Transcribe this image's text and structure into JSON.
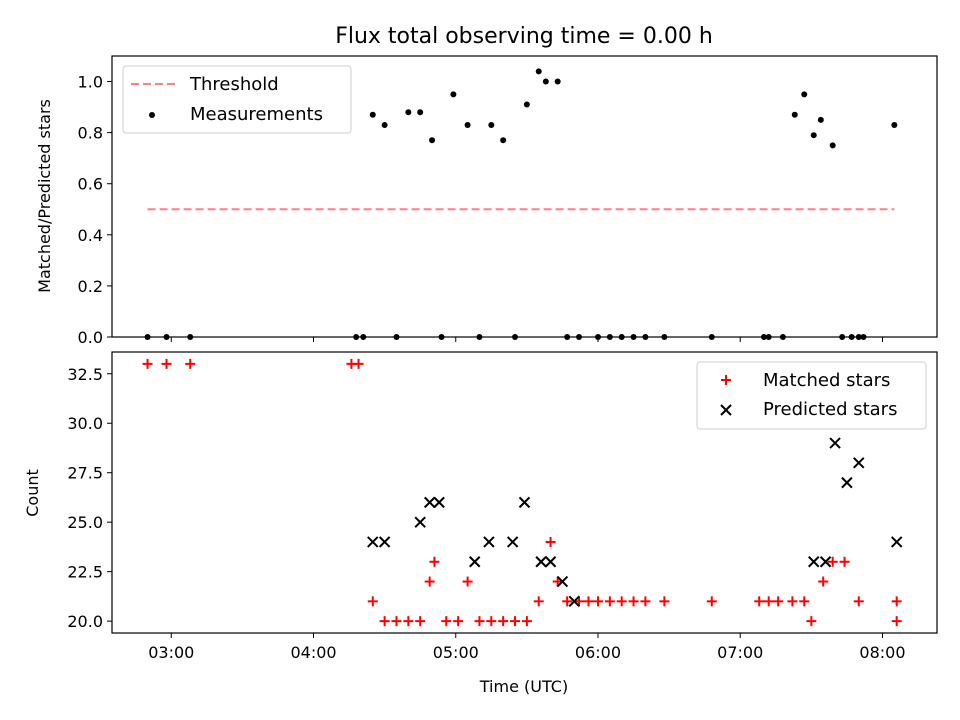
{
  "chart_data": [
    {
      "type": "scatter",
      "title": "Flux total observing time = 0.00 h",
      "xlabel": "",
      "ylabel": "Matched/Predicted stars",
      "xlim": [
        "02:35",
        "08:23"
      ],
      "ylim": [
        0.0,
        1.1
      ],
      "yticks": [
        "0.0",
        "0.2",
        "0.4",
        "0.6",
        "0.8",
        "1.0"
      ],
      "ytick_values": [
        0.0,
        0.2,
        0.4,
        0.6,
        0.8,
        1.0
      ],
      "legend_position": "top-left",
      "threshold": {
        "name": "Threshold",
        "color": "#ff8080",
        "value": 0.5,
        "x_start": "02:50",
        "x_end": "08:05"
      },
      "series": [
        {
          "name": "Measurements",
          "color": "#000000",
          "marker": "dot",
          "x": [
            "02:50",
            "02:58",
            "03:08",
            "04:18",
            "04:21",
            "04:25",
            "04:30",
            "04:35",
            "04:40",
            "04:45",
            "04:50",
            "04:54",
            "04:59",
            "05:05",
            "05:10",
            "05:15",
            "05:20",
            "05:25",
            "05:30",
            "05:35",
            "05:38",
            "05:43",
            "05:47",
            "05:52",
            "06:00",
            "06:05",
            "06:10",
            "06:15",
            "06:20",
            "06:28",
            "06:48",
            "07:10",
            "07:12",
            "07:18",
            "07:23",
            "07:27",
            "07:31",
            "07:34",
            "07:39",
            "07:43",
            "07:47",
            "07:50",
            "07:52",
            "08:05"
          ],
          "y": [
            0,
            0,
            0,
            0,
            0,
            0.87,
            0.83,
            0,
            0.88,
            0.88,
            0.77,
            0,
            0.95,
            0.83,
            0,
            0.83,
            0.77,
            0,
            0.91,
            1.04,
            1.0,
            1.0,
            0,
            0,
            0,
            0,
            0,
            0,
            0,
            0,
            0,
            0,
            0,
            0,
            0.87,
            0.95,
            0.79,
            0.85,
            0.75,
            0,
            0,
            0,
            0,
            0.83
          ]
        }
      ]
    },
    {
      "type": "scatter",
      "title": "",
      "xlabel": "Time (UTC)",
      "ylabel": "Count",
      "xlim": [
        "02:35",
        "08:23"
      ],
      "ylim": [
        19.4,
        33.6
      ],
      "xticks": [
        "03:00",
        "04:00",
        "05:00",
        "06:00",
        "07:00",
        "08:00"
      ],
      "yticks": [
        "20.0",
        "22.5",
        "25.0",
        "27.5",
        "30.0",
        "32.5"
      ],
      "ytick_values": [
        20.0,
        22.5,
        25.0,
        27.5,
        30.0,
        32.5
      ],
      "legend_position": "top-right",
      "series": [
        {
          "name": "Matched stars",
          "color": "#ff0000",
          "marker": "plus",
          "x": [
            "02:50",
            "02:58",
            "03:08",
            "04:16",
            "04:19",
            "04:25",
            "04:30",
            "04:35",
            "04:40",
            "04:45",
            "04:49",
            "04:51",
            "04:56",
            "05:01",
            "05:05",
            "05:10",
            "05:15",
            "05:20",
            "05:25",
            "05:30",
            "05:35",
            "05:40",
            "05:43",
            "05:47",
            "05:52",
            "05:56",
            "06:00",
            "06:05",
            "06:10",
            "06:15",
            "06:20",
            "06:28",
            "06:48",
            "07:08",
            "07:12",
            "07:16",
            "07:22",
            "07:27",
            "07:30",
            "07:35",
            "07:39",
            "07:44",
            "07:50",
            "08:06",
            "08:06"
          ],
          "y": [
            33,
            33,
            33,
            33,
            33,
            21,
            20,
            20,
            20,
            20,
            22,
            23,
            20,
            20,
            22,
            20,
            20,
            20,
            20,
            20,
            21,
            24,
            22,
            21,
            21,
            21,
            21,
            21,
            21,
            21,
            21,
            21,
            21,
            21,
            21,
            21,
            21,
            21,
            20,
            22,
            23,
            23,
            21,
            21,
            20
          ]
        },
        {
          "name": "Predicted stars",
          "color": "#000000",
          "marker": "x",
          "x": [
            "04:25",
            "04:30",
            "04:45",
            "04:49",
            "04:53",
            "05:08",
            "05:14",
            "05:24",
            "05:29",
            "05:36",
            "05:40",
            "05:45",
            "05:50",
            "07:31",
            "07:36",
            "07:40",
            "07:45",
            "07:50",
            "08:06"
          ],
          "y": [
            24,
            24,
            25,
            26,
            26,
            23,
            24,
            24,
            26,
            23,
            23,
            22,
            21,
            23,
            23,
            29,
            27,
            28,
            24
          ]
        }
      ]
    }
  ]
}
